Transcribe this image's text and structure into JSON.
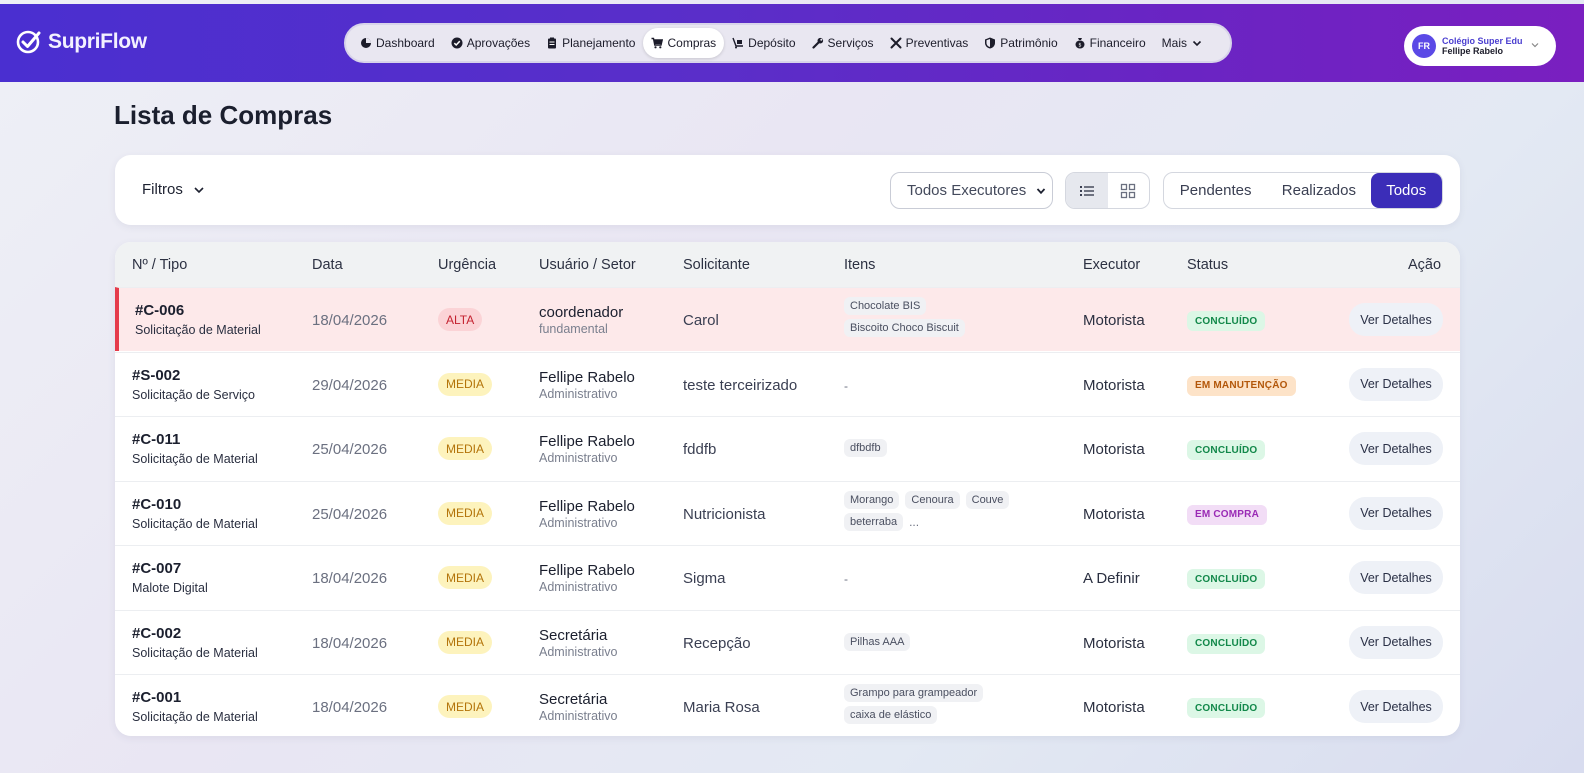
{
  "brand": {
    "name": "SupriFlow"
  },
  "nav": {
    "items": [
      {
        "label": "Dashboard",
        "icon": "pie-chart-icon",
        "active": false
      },
      {
        "label": "Aprovações",
        "icon": "check-circle-icon",
        "active": false
      },
      {
        "label": "Planejamento",
        "icon": "clipboard-icon",
        "active": false
      },
      {
        "label": "Compras",
        "icon": "cart-icon",
        "active": true
      },
      {
        "label": "Depósito",
        "icon": "dolly-icon",
        "active": false
      },
      {
        "label": "Serviços",
        "icon": "wrench-icon",
        "active": false
      },
      {
        "label": "Preventivas",
        "icon": "tools-icon",
        "active": false
      },
      {
        "label": "Patrimônio",
        "icon": "shield-icon",
        "active": false
      },
      {
        "label": "Financeiro",
        "icon": "money-bag-icon",
        "active": false
      },
      {
        "label": "Mais",
        "icon": "chevron-down-icon",
        "active": false
      }
    ]
  },
  "account": {
    "initials": "FR",
    "org": "Colégio Super Edu",
    "user": "Fellipe Rabelo"
  },
  "page": {
    "title": "Lista de Compras"
  },
  "filters": {
    "filtros_label": "Filtros",
    "executor_select": "Todos Executores",
    "segments": [
      "Pendentes",
      "Realizados",
      "Todos"
    ],
    "active_segment": "Todos"
  },
  "table": {
    "headers": {
      "num_tipo": "Nº / Tipo",
      "data": "Data",
      "urgencia": "Urgência",
      "usuario_setor": "Usuário / Setor",
      "solicitante": "Solicitante",
      "itens": "Itens",
      "executor": "Executor",
      "status": "Status",
      "acao": "Ação"
    },
    "action_label": "Ver Detalhes",
    "rows": [
      {
        "code": "#C-006",
        "type": "Solicitação de Material",
        "date": "18/04/2026",
        "urgency": "ALTA",
        "user": "coordenador",
        "sector": "fundamental",
        "requester": "Carol",
        "items": [
          "Chocolate BIS",
          "Biscoito Choco Biscuit"
        ],
        "more": "",
        "executor": "Motorista",
        "status": "CONCLUÍDO"
      },
      {
        "code": "#S-002",
        "type": "Solicitação de Serviço",
        "date": "29/04/2026",
        "urgency": "MEDIA",
        "user": "Fellipe Rabelo",
        "sector": "Administrativo",
        "requester": "teste terceirizado",
        "items": [],
        "more": "-",
        "executor": "Motorista",
        "status": "EM MANUTENÇÃO"
      },
      {
        "code": "#C-011",
        "type": "Solicitação de Material",
        "date": "25/04/2026",
        "urgency": "MEDIA",
        "user": "Fellipe Rabelo",
        "sector": "Administrativo",
        "requester": "fddfb",
        "items": [
          "dfbdfb"
        ],
        "more": "",
        "executor": "Motorista",
        "status": "CONCLUÍDO"
      },
      {
        "code": "#C-010",
        "type": "Solicitação de Material",
        "date": "25/04/2026",
        "urgency": "MEDIA",
        "user": "Fellipe Rabelo",
        "sector": "Administrativo",
        "requester": "Nutricionista",
        "items": [
          "Morango",
          "Cenoura",
          "Couve",
          "beterraba"
        ],
        "more": "...",
        "executor": "Motorista",
        "status": "EM COMPRA"
      },
      {
        "code": "#C-007",
        "type": "Malote Digital",
        "date": "18/04/2026",
        "urgency": "MEDIA",
        "user": "Fellipe Rabelo",
        "sector": "Administrativo",
        "requester": "Sigma",
        "items": [],
        "more": "-",
        "executor": "A Definir",
        "status": "CONCLUÍDO"
      },
      {
        "code": "#C-002",
        "type": "Solicitação de Material",
        "date": "18/04/2026",
        "urgency": "MEDIA",
        "user": "Secretária",
        "sector": "Administrativo",
        "requester": "Recepção",
        "items": [
          "Pilhas AAA"
        ],
        "more": "",
        "executor": "Motorista",
        "status": "CONCLUÍDO"
      },
      {
        "code": "#C-001",
        "type": "Solicitação de Material",
        "date": "18/04/2026",
        "urgency": "MEDIA",
        "user": "Secretária",
        "sector": "Administrativo",
        "requester": "Maria Rosa",
        "items": [
          "Grampo para grampeador",
          "caixa de elástico"
        ],
        "more": "",
        "executor": "Motorista",
        "status": "CONCLUÍDO"
      }
    ]
  },
  "colors": {
    "header_start": "#4a2fd0",
    "header_end": "#7a1fc0",
    "accent": "#3b2db8",
    "urgent_border": "#e53b4b"
  }
}
